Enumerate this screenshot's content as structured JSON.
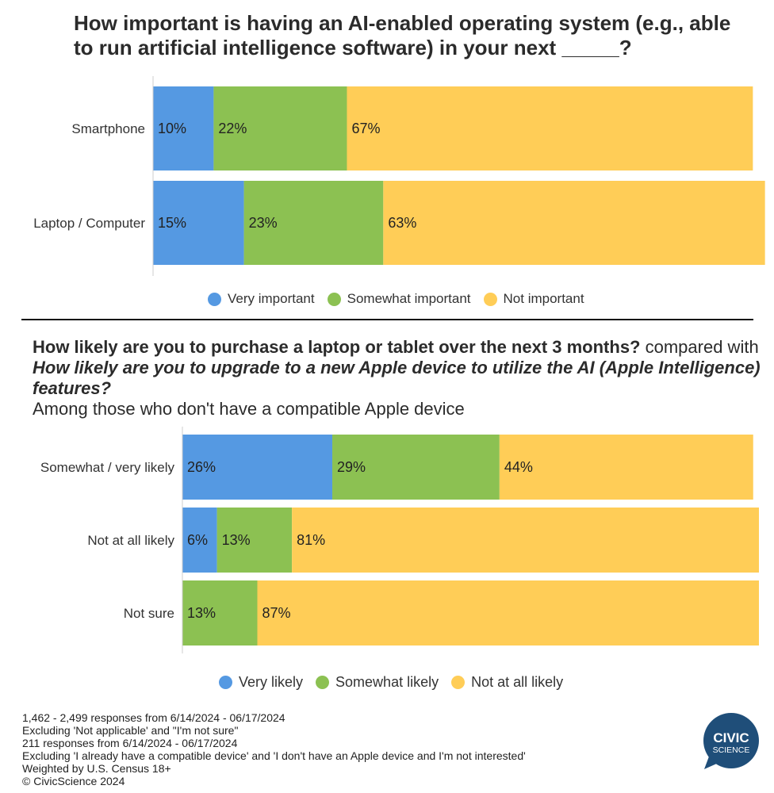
{
  "title1": "How important is having an AI-enabled operating system (e.g., able to run artificial intelligence software) in your next _____?",
  "title2": {
    "q1": "How likely are you to purchase a laptop or tablet over the next 3 months?",
    "mid": " compared with ",
    "q2": "How likely are you to upgrade to a new Apple device to utilize the AI (Apple Intelligence) features?",
    "sub": "Among those who don't have a compatible Apple device"
  },
  "legend1": [
    {
      "label": "Very important",
      "color": "#5599e2"
    },
    {
      "label": "Somewhat important",
      "color": "#8cc152"
    },
    {
      "label": "Not important",
      "color": "#ffcd57"
    }
  ],
  "legend2": [
    {
      "label": "Very likely",
      "color": "#5599e2"
    },
    {
      "label": "Somewhat likely",
      "color": "#8cc152"
    },
    {
      "label": "Not at all likely",
      "color": "#ffcd57"
    }
  ],
  "notes": [
    "1,462 - 2,499  responses from 6/14/2024 - 06/17/2024",
    "Excluding 'Not applicable' and \"I'm not sure\"",
    "211 responses from 6/14/2024 - 06/17/2024",
    "Excluding 'I already have a compatible device' and 'I don't have an Apple device and I'm not interested'",
    "Weighted by U.S. Census 18+",
    "© CivicScience 2024"
  ],
  "logo": {
    "line1": "CIVIC",
    "line2": "SCIENCE",
    "color": "#1f4e79"
  },
  "chart_data": [
    {
      "type": "bar",
      "orientation": "horizontal",
      "stacked": true,
      "categories": [
        "Smartphone",
        "Laptop / Computer"
      ],
      "series": [
        {
          "name": "Very important",
          "values": [
            10,
            15
          ],
          "color": "#5599e2"
        },
        {
          "name": "Somewhat important",
          "values": [
            22,
            23
          ],
          "color": "#8cc152"
        },
        {
          "name": "Not important",
          "values": [
            67,
            63
          ],
          "color": "#ffcd57"
        }
      ],
      "xlim": [
        0,
        100
      ],
      "legend_position": "bottom",
      "value_format": "percent",
      "grid": false
    },
    {
      "type": "bar",
      "orientation": "horizontal",
      "stacked": true,
      "categories": [
        "Somewhat / very likely",
        "Not at all likely",
        "Not sure"
      ],
      "series": [
        {
          "name": "Very likely",
          "values": [
            26,
            6,
            0
          ],
          "color": "#5599e2"
        },
        {
          "name": "Somewhat likely",
          "values": [
            29,
            13,
            13
          ],
          "color": "#8cc152"
        },
        {
          "name": "Not at all likely",
          "values": [
            44,
            81,
            87
          ],
          "color": "#ffcd57"
        }
      ],
      "xlim": [
        0,
        100
      ],
      "legend_position": "bottom",
      "value_format": "percent",
      "grid": false
    }
  ]
}
